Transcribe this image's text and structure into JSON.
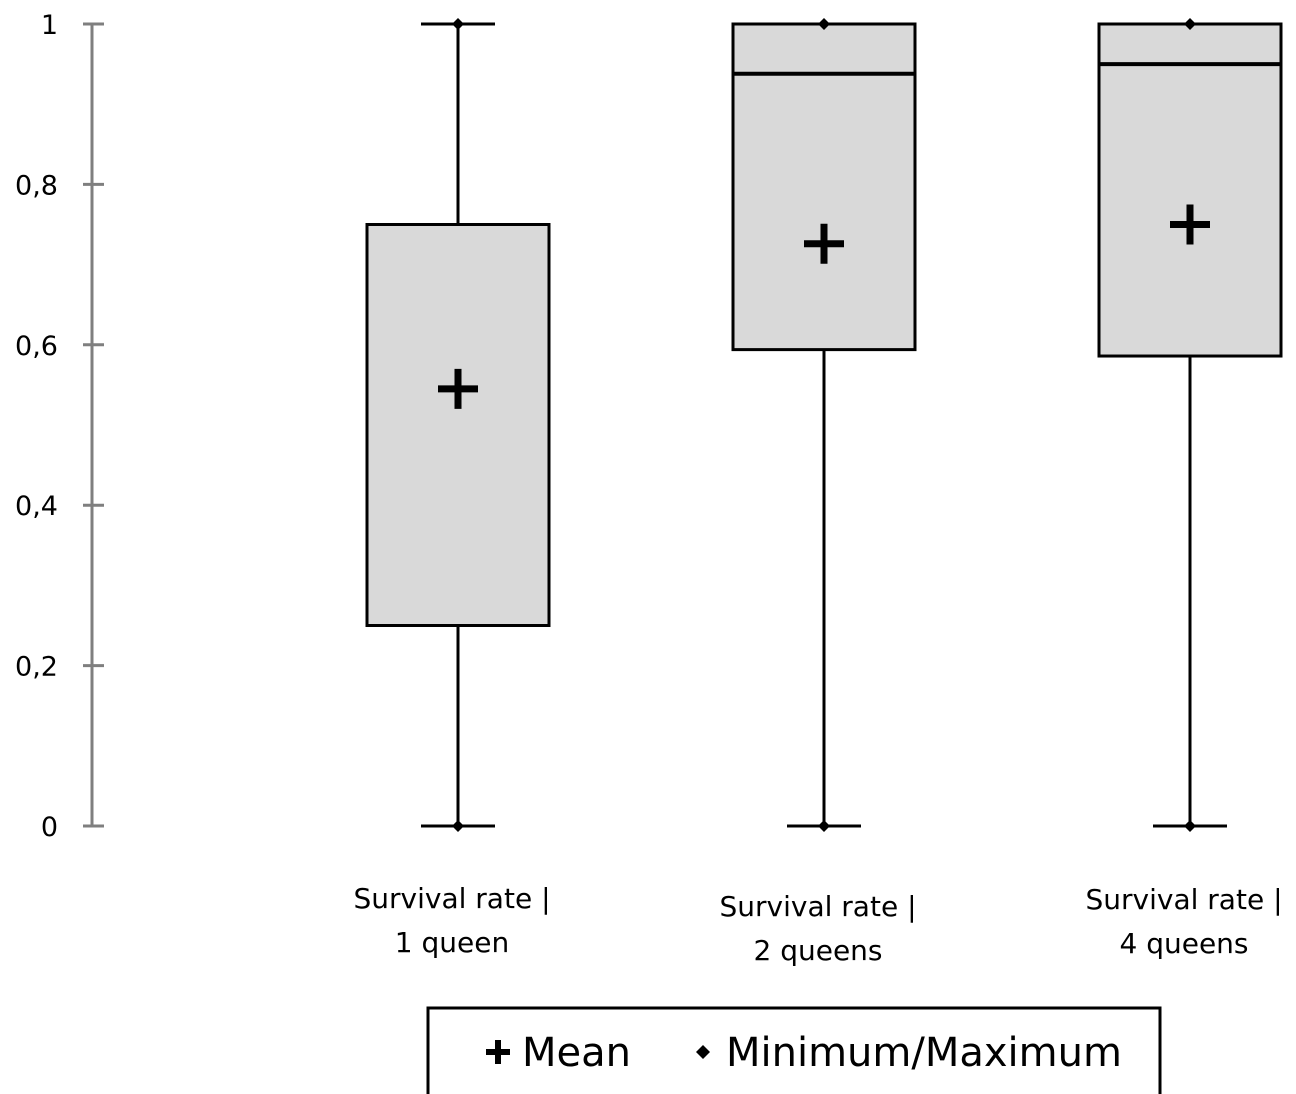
{
  "chart_data": {
    "type": "box",
    "title": "",
    "xlabel": "",
    "ylabel": "",
    "ylim": [
      0,
      1
    ],
    "yticks": [
      0,
      0.2,
      0.4,
      0.6,
      0.8,
      1
    ],
    "ytick_labels": [
      "0",
      "0,2",
      "0,4",
      "0,6",
      "0,8",
      "1"
    ],
    "grid": false,
    "categories": [
      {
        "line1": "Survival rate |",
        "line2": "1 queen"
      },
      {
        "line1": "Survival rate |",
        "line2": "2 queens"
      },
      {
        "line1": "Survival rate |",
        "line2": "4 queens"
      }
    ],
    "boxes": [
      {
        "min": 0,
        "q1": 0.25,
        "median": null,
        "q3": 0.75,
        "max": 1,
        "mean": 0.545
      },
      {
        "min": 0,
        "q1": 0.594,
        "median": 0.938,
        "q3": 1,
        "max": 1,
        "mean": 0.726
      },
      {
        "min": 0,
        "q1": 0.586,
        "median": 0.95,
        "q3": 1,
        "max": 1,
        "mean": 0.75
      }
    ],
    "legend": {
      "position": "bottom",
      "items": [
        {
          "marker": "plus",
          "label": "Mean"
        },
        {
          "marker": "diamond",
          "label": "Minimum/Maximum"
        }
      ]
    },
    "colors": {
      "box_fill": "#d9d9d9",
      "stroke": "#000000",
      "axis": "#7f7f7f"
    }
  }
}
